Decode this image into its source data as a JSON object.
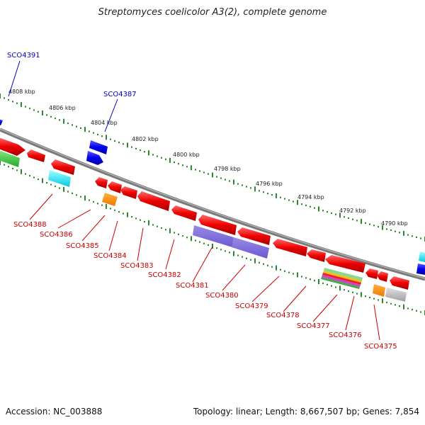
{
  "title": "Streptomyces coelicolor A3(2), complete genome",
  "footer": {
    "accession": "Accession: NC_003888",
    "summary": "Topology: linear; Length: 8,667,507 bp; Genes: 7,854"
  },
  "colors": {
    "forward_label": "#0000cc",
    "reverse_label": "#cc0000",
    "tick": "#2a8a2a",
    "backbone": "#808080"
  },
  "scale_labels": [
    "4808 kbp",
    "4806 kbp",
    "4804 kbp",
    "4802 kbp",
    "4800 kbp",
    "4798 kbp",
    "4796 kbp",
    "4794 kbp",
    "4792 kbp",
    "4790 kbp"
  ],
  "forward_genes": [
    "SCO4391",
    "SCO4387"
  ],
  "reverse_genes": [
    "SCO4388",
    "SCO4386",
    "SCO4385",
    "SCO4384",
    "SCO4383",
    "SCO4382",
    "SCO4381",
    "SCO4380",
    "SCO4379",
    "SCO4378",
    "SCO4377",
    "SCO4376",
    "SCO4375"
  ]
}
